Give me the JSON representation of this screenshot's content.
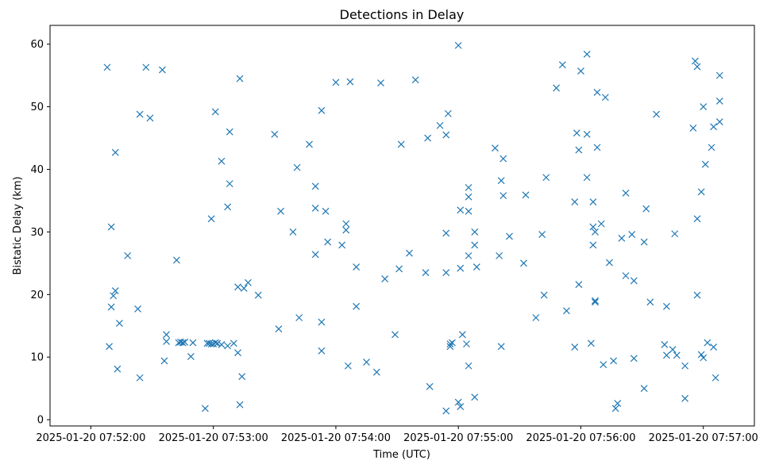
{
  "chart_data": {
    "type": "scatter",
    "title": "Detections in Delay",
    "xlabel": "Time (UTC)",
    "ylabel": "Bistatic Delay (km)",
    "x_unit": "seconds since 2025-01-20 07:52:00 UTC",
    "xlim": [
      -20,
      325
    ],
    "ylim": [
      -1,
      63
    ],
    "xticks": [
      0,
      60,
      120,
      180,
      240,
      300
    ],
    "xtick_labels": [
      "2025-01-20 07:52:00",
      "2025-01-20 07:53:00",
      "2025-01-20 07:54:00",
      "2025-01-20 07:55:00",
      "2025-01-20 07:56:00",
      "2025-01-20 07:57:00"
    ],
    "yticks": [
      0,
      10,
      20,
      30,
      40,
      50,
      60
    ],
    "ytick_labels": [
      "0",
      "10",
      "20",
      "30",
      "40",
      "50",
      "60"
    ],
    "grid": false,
    "marker": "x",
    "color": "#1f77b4",
    "points": [
      [
        8,
        56.3
      ],
      [
        9,
        11.7
      ],
      [
        10,
        30.8
      ],
      [
        10,
        18
      ],
      [
        11,
        19.8
      ],
      [
        12,
        20.6
      ],
      [
        12,
        42.7
      ],
      [
        13,
        8.1
      ],
      [
        14,
        15.4
      ],
      [
        18,
        26.2
      ],
      [
        23,
        17.7
      ],
      [
        24,
        48.8
      ],
      [
        24,
        6.7
      ],
      [
        27,
        56.3
      ],
      [
        29,
        48.2
      ],
      [
        35,
        55.9
      ],
      [
        36,
        9.4
      ],
      [
        37,
        13.6
      ],
      [
        37,
        12.5
      ],
      [
        42,
        25.5
      ],
      [
        43,
        12.3
      ],
      [
        44,
        12.4
      ],
      [
        45,
        12.3
      ],
      [
        46,
        12.4
      ],
      [
        49,
        10.1
      ],
      [
        50,
        12.3
      ],
      [
        56,
        1.8
      ],
      [
        57,
        12.2
      ],
      [
        58,
        12.2
      ],
      [
        59,
        12.1
      ],
      [
        60,
        12.1
      ],
      [
        61,
        12.3
      ],
      [
        62,
        12.2
      ],
      [
        59,
        32.1
      ],
      [
        61,
        49.2
      ],
      [
        64,
        12
      ],
      [
        64,
        41.3
      ],
      [
        67,
        11.8
      ],
      [
        67,
        34
      ],
      [
        68,
        37.7
      ],
      [
        68,
        46
      ],
      [
        70,
        12.2
      ],
      [
        72,
        21.2
      ],
      [
        72,
        10.7
      ],
      [
        73,
        54.5
      ],
      [
        73,
        2.4
      ],
      [
        74,
        6.9
      ],
      [
        75,
        21
      ],
      [
        77,
        21.9
      ],
      [
        82,
        19.9
      ],
      [
        90,
        45.6
      ],
      [
        92,
        14.5
      ],
      [
        93,
        33.3
      ],
      [
        99,
        30
      ],
      [
        101,
        40.3
      ],
      [
        102,
        16.3
      ],
      [
        107,
        44
      ],
      [
        110,
        33.8
      ],
      [
        110,
        37.3
      ],
      [
        110,
        26.4
      ],
      [
        113,
        49.4
      ],
      [
        113,
        15.6
      ],
      [
        113,
        11
      ],
      [
        115,
        33.3
      ],
      [
        116,
        28.4
      ],
      [
        120,
        53.9
      ],
      [
        123,
        27.9
      ],
      [
        125,
        30.3
      ],
      [
        125,
        31.3
      ],
      [
        126,
        8.6
      ],
      [
        127,
        54
      ],
      [
        130,
        18.1
      ],
      [
        130,
        24.4
      ],
      [
        135,
        9.2
      ],
      [
        140,
        7.6
      ],
      [
        142,
        53.8
      ],
      [
        144,
        22.5
      ],
      [
        149,
        13.6
      ],
      [
        151,
        24.1
      ],
      [
        152,
        44
      ],
      [
        156,
        26.6
      ],
      [
        159,
        54.3
      ],
      [
        164,
        23.5
      ],
      [
        165,
        45
      ],
      [
        166,
        5.3
      ],
      [
        171,
        47
      ],
      [
        174,
        45.5
      ],
      [
        175,
        48.9
      ],
      [
        174,
        29.8
      ],
      [
        174,
        23.5
      ],
      [
        174,
        1.4
      ],
      [
        176,
        11.7
      ],
      [
        176,
        12.1
      ],
      [
        177,
        12.3
      ],
      [
        180,
        59.8
      ],
      [
        180,
        2.8
      ],
      [
        181,
        2.1
      ],
      [
        181,
        24.2
      ],
      [
        181,
        33.5
      ],
      [
        182,
        13.6
      ],
      [
        184,
        12.1
      ],
      [
        185,
        26.2
      ],
      [
        185,
        35.6
      ],
      [
        185,
        37.1
      ],
      [
        185,
        33.3
      ],
      [
        185,
        8.6
      ],
      [
        188,
        27.9
      ],
      [
        188,
        30
      ],
      [
        188,
        3.6
      ],
      [
        189,
        24.4
      ],
      [
        198,
        43.4
      ],
      [
        200,
        26.2
      ],
      [
        201,
        38.2
      ],
      [
        201,
        11.7
      ],
      [
        202,
        41.7
      ],
      [
        202,
        35.8
      ],
      [
        205,
        29.3
      ],
      [
        212,
        25
      ],
      [
        213,
        35.9
      ],
      [
        218,
        16.3
      ],
      [
        221,
        29.6
      ],
      [
        222,
        19.9
      ],
      [
        223,
        38.7
      ],
      [
        228,
        53
      ],
      [
        231,
        56.7
      ],
      [
        233,
        17.4
      ],
      [
        237,
        11.6
      ],
      [
        237,
        34.8
      ],
      [
        238,
        45.8
      ],
      [
        239,
        21.6
      ],
      [
        239,
        43.1
      ],
      [
        240,
        55.7
      ],
      [
        243,
        38.7
      ],
      [
        243,
        45.6
      ],
      [
        243,
        58.4
      ],
      [
        245,
        12.2
      ],
      [
        246,
        27.9
      ],
      [
        246,
        34.8
      ],
      [
        246,
        30.8
      ],
      [
        247,
        19
      ],
      [
        247,
        18.8
      ],
      [
        247,
        30
      ],
      [
        248,
        52.3
      ],
      [
        248,
        43.5
      ],
      [
        250,
        31.3
      ],
      [
        251,
        8.8
      ],
      [
        252,
        51.5
      ],
      [
        254,
        25.1
      ],
      [
        256,
        9.4
      ],
      [
        257,
        1.8
      ],
      [
        258,
        2.6
      ],
      [
        260,
        29
      ],
      [
        262,
        36.2
      ],
      [
        262,
        23
      ],
      [
        265,
        29.6
      ],
      [
        266,
        22.2
      ],
      [
        266,
        9.8
      ],
      [
        271,
        5
      ],
      [
        271,
        28.4
      ],
      [
        272,
        33.7
      ],
      [
        274,
        18.8
      ],
      [
        277,
        48.8
      ],
      [
        281,
        12
      ],
      [
        282,
        10.3
      ],
      [
        282,
        18.1
      ],
      [
        285,
        11.2
      ],
      [
        286,
        29.7
      ],
      [
        287,
        10.3
      ],
      [
        291,
        8.6
      ],
      [
        291,
        3.4
      ],
      [
        295,
        46.6
      ],
      [
        296,
        57.3
      ],
      [
        297,
        56.4
      ],
      [
        297,
        19.9
      ],
      [
        297,
        32.1
      ],
      [
        299,
        10.4
      ],
      [
        299,
        36.4
      ],
      [
        300,
        9.9
      ],
      [
        300,
        50
      ],
      [
        301,
        40.8
      ],
      [
        302,
        12.3
      ],
      [
        304,
        43.5
      ],
      [
        305,
        46.8
      ],
      [
        305,
        11.6
      ],
      [
        306,
        6.7
      ],
      [
        308,
        50.9
      ],
      [
        308,
        47.6
      ],
      [
        308,
        55
      ]
    ]
  }
}
